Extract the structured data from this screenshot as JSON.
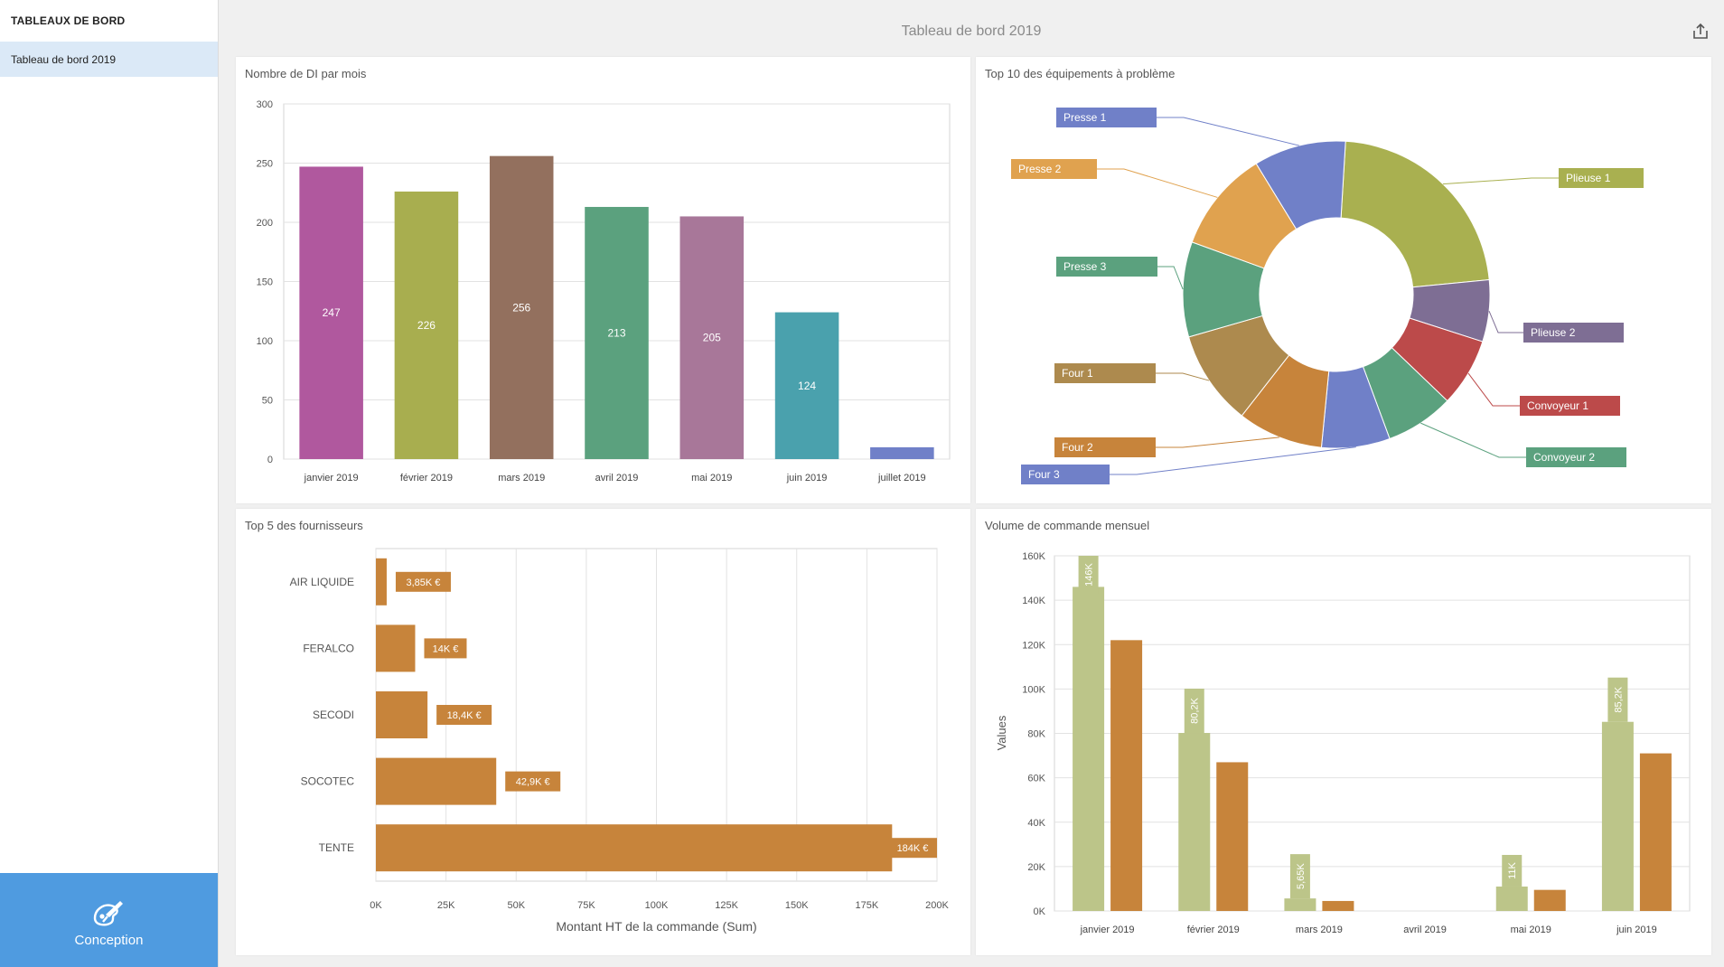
{
  "sidebar": {
    "title": "TABLEAUX DE BORD",
    "items": [
      {
        "label": "Tableau de bord 2019"
      }
    ],
    "design_button": {
      "label": "Conception",
      "icon": "palette-icon"
    }
  },
  "header": {
    "title": "Tableau de bord 2019",
    "export_icon": "export-icon"
  },
  "panels": {
    "di_per_month": {
      "title": "Nombre de DI par mois"
    },
    "top_equipment": {
      "title": "Top 10 des équipements à problème"
    },
    "top_suppliers": {
      "title": "Top 5 des fournisseurs"
    },
    "monthly_orders": {
      "title": "Volume de commande mensuel"
    }
  },
  "chart_data": [
    {
      "id": "di_per_month",
      "type": "bar",
      "categories": [
        "janvier 2019",
        "février 2019",
        "mars 2019",
        "avril 2019",
        "mai 2019",
        "juin 2019",
        "juillet 2019"
      ],
      "values": [
        247,
        226,
        256,
        213,
        205,
        124,
        10
      ],
      "data_labels": [
        "247",
        "226",
        "256",
        "213",
        "205",
        "124",
        ""
      ],
      "colors": [
        "#b0589e",
        "#a8ae4f",
        "#93705e",
        "#5ba17e",
        "#a87799",
        "#4aa1ad",
        "#7080c8"
      ],
      "yticks": [
        "0",
        "50",
        "100",
        "150",
        "200",
        "250",
        "300"
      ],
      "ylim": [
        0,
        300
      ],
      "grid": true
    },
    {
      "id": "top_equipment",
      "type": "pie",
      "donut": true,
      "labels": [
        "Plieuse 1",
        "Plieuse 2",
        "Convoyeur 1",
        "Convoyeur 2",
        "Four 3",
        "Four 2",
        "Four 1",
        "Presse 3",
        "Presse 2",
        "Presse 1"
      ],
      "values": [
        22.5,
        6.5,
        7.2,
        7.2,
        7.2,
        9.0,
        10.0,
        10.0,
        10.7,
        9.7
      ],
      "colors": [
        "#a9b050",
        "#7e6e94",
        "#bc4a4a",
        "#5ba17e",
        "#7080c8",
        "#c7843b",
        "#ad8a4e",
        "#5ba17e",
        "#e0a24f",
        "#7080c8"
      ],
      "legend": "callouts"
    },
    {
      "id": "top_suppliers",
      "type": "bar",
      "orientation": "horizontal",
      "categories": [
        "AIR LIQUIDE",
        "FERALCO",
        "SECODI",
        "SOCOTEC",
        "TENTE"
      ],
      "values": [
        3850,
        14000,
        18400,
        42900,
        184000
      ],
      "data_labels": [
        "3,85K €",
        "14K €",
        "18,4K €",
        "42,9K €",
        "184K €"
      ],
      "color": "#c7843b",
      "xticks": [
        "0K",
        "25K",
        "50K",
        "75K",
        "100K",
        "125K",
        "150K",
        "175K",
        "200K"
      ],
      "xlim": [
        0,
        200000
      ],
      "xlabel": "Montant HT de la commande (Sum)",
      "grid": true
    },
    {
      "id": "monthly_orders",
      "type": "bar",
      "categories": [
        "janvier 2019",
        "février 2019",
        "mars 2019",
        "avril 2019",
        "mai 2019",
        "juin 2019"
      ],
      "series": [
        {
          "values": [
            146000,
            80200,
            5650,
            0,
            11000,
            85200
          ],
          "data_labels": [
            "146K",
            "80,2K",
            "5,65K",
            "",
            "11K",
            "85,2K"
          ],
          "color": "#bcc589"
        },
        {
          "values": [
            122000,
            67000,
            4500,
            0,
            9500,
            71000
          ],
          "color": "#c7843b"
        }
      ],
      "yticks": [
        "0K",
        "20K",
        "40K",
        "60K",
        "80K",
        "100K",
        "120K",
        "140K",
        "160K"
      ],
      "ylim": [
        0,
        160000
      ],
      "ylabel": "Values",
      "grid": true
    }
  ]
}
